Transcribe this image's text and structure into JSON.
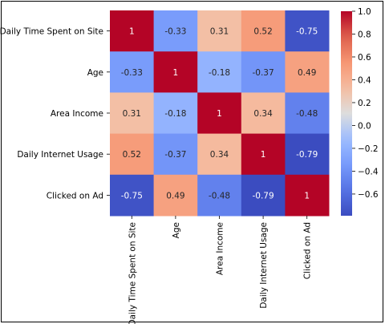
{
  "chart_data": {
    "type": "heatmap",
    "title": "",
    "rows": [
      "Daily Time Spent on Site",
      "Age",
      "Area Income",
      "Daily Internet Usage",
      "Clicked on Ad"
    ],
    "columns": [
      "Daily Time Spent on Site",
      "Age",
      "Area Income",
      "Daily Internet Usage",
      "Clicked on Ad"
    ],
    "values": [
      [
        1,
        -0.33,
        0.31,
        0.52,
        -0.75
      ],
      [
        -0.33,
        1,
        -0.18,
        -0.37,
        0.49
      ],
      [
        0.31,
        -0.18,
        1,
        0.34,
        -0.48
      ],
      [
        0.52,
        -0.37,
        0.34,
        1,
        -0.79
      ],
      [
        -0.75,
        0.49,
        -0.48,
        -0.79,
        1
      ]
    ],
    "annotations": [
      [
        "1",
        "-0.33",
        "0.31",
        "0.52",
        "-0.75"
      ],
      [
        "-0.33",
        "1",
        "-0.18",
        "-0.37",
        "0.49"
      ],
      [
        "0.31",
        "-0.18",
        "1",
        "0.34",
        "-0.48"
      ],
      [
        "0.52",
        "-0.37",
        "0.34",
        "1",
        "-0.79"
      ],
      [
        "-0.75",
        "0.49",
        "-0.48",
        "-0.79",
        "1"
      ]
    ],
    "colormap": "coolwarm",
    "vmin": -0.79,
    "vmax": 1.0,
    "colorbar_ticks": [
      1.0,
      0.8,
      0.6,
      0.4,
      0.2,
      0.0,
      -0.2,
      -0.4,
      -0.6
    ],
    "colorbar_tick_labels": [
      "1.0",
      "0.8",
      "0.6",
      "0.4",
      "0.2",
      "0.0",
      "−0.2",
      "−0.4",
      "−0.6"
    ],
    "legend": "colorbar-right",
    "grid": false
  }
}
